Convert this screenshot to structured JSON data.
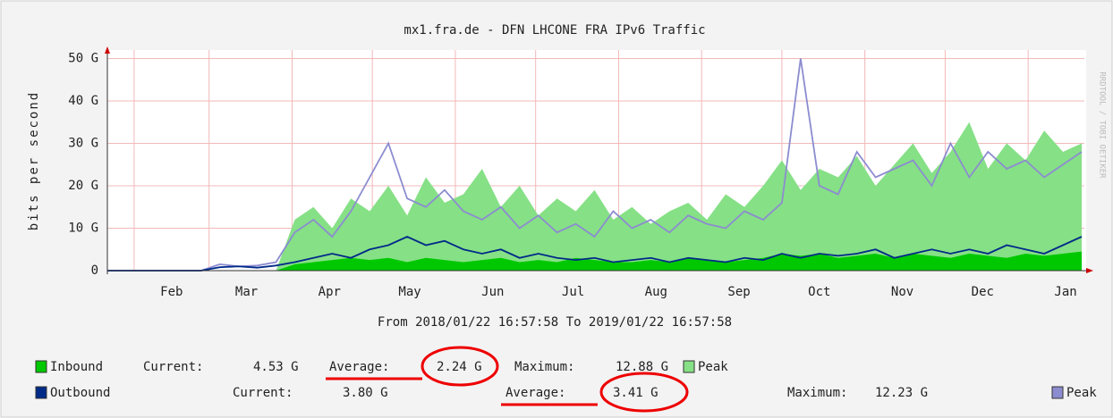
{
  "chart_data": {
    "type": "area",
    "title": "mx1.fra.de - DFN LHCONE FRA IPv6 Traffic",
    "subtitle": "From 2018/01/22 16:57:58 To 2019/01/22 16:57:58",
    "y_label": "bits per second",
    "watermark": "RRDTOOL / TOBI OETIKER",
    "grid": true,
    "xlim": [
      0,
      365
    ],
    "xticks": [
      {
        "value": 10,
        "label": "Feb"
      },
      {
        "value": 38,
        "label": "Mar"
      },
      {
        "value": 69,
        "label": "Apr"
      },
      {
        "value": 99,
        "label": "May"
      },
      {
        "value": 130,
        "label": "Jun"
      },
      {
        "value": 160,
        "label": "Jul"
      },
      {
        "value": 191,
        "label": "Aug"
      },
      {
        "value": 222,
        "label": "Sep"
      },
      {
        "value": 252,
        "label": "Oct"
      },
      {
        "value": 283,
        "label": "Nov"
      },
      {
        "value": 313,
        "label": "Dec"
      },
      {
        "value": 344,
        "label": "Jan"
      }
    ],
    "ylim": [
      0,
      52
    ],
    "yticks": [
      {
        "value": 0,
        "label": "0"
      },
      {
        "value": 10,
        "label": "10 G"
      },
      {
        "value": 20,
        "label": "20 G"
      },
      {
        "value": 30,
        "label": "30 G"
      },
      {
        "value": 40,
        "label": "40 G"
      },
      {
        "value": 50,
        "label": "50 G"
      }
    ],
    "x": [
      0,
      7,
      14,
      21,
      28,
      35,
      42,
      49,
      56,
      63,
      70,
      77,
      84,
      91,
      98,
      105,
      112,
      119,
      126,
      133,
      140,
      147,
      154,
      161,
      168,
      175,
      182,
      189,
      196,
      203,
      210,
      217,
      224,
      231,
      238,
      245,
      252,
      259,
      266,
      273,
      280,
      287,
      294,
      301,
      308,
      315,
      322,
      329,
      336,
      343,
      350,
      357,
      364
    ],
    "series": [
      {
        "name": "Peak",
        "color": "#86e086",
        "draw": "area",
        "values": [
          0,
          0,
          0,
          0,
          0,
          0,
          0,
          0,
          0,
          0,
          12,
          15,
          10,
          17,
          14,
          20,
          13,
          22,
          16,
          18,
          24,
          15,
          20,
          13,
          17,
          14,
          19,
          12,
          15,
          11,
          14,
          16,
          12,
          18,
          15,
          20,
          26,
          19,
          24,
          22,
          27,
          20,
          25,
          30,
          23,
          28,
          35,
          24,
          30,
          26,
          33,
          28,
          30
        ]
      },
      {
        "name": "Inbound",
        "color": "#00c800",
        "draw": "area",
        "stats": [
          "Current:",
          "4.53 G",
          "Average:",
          "2.24 G",
          "Maximum:",
          "12.88 G"
        ],
        "values": [
          0,
          0,
          0,
          0,
          0,
          0,
          0,
          0,
          0,
          0,
          1.5,
          2,
          2.5,
          3,
          2.5,
          3,
          2,
          3,
          2.5,
          2,
          2.5,
          3,
          2,
          2.5,
          2,
          3,
          2.5,
          2,
          2,
          2.5,
          2,
          3,
          2.5,
          2,
          2.5,
          3,
          4,
          3.5,
          4,
          3,
          3.5,
          4,
          3,
          4,
          3.5,
          3,
          4,
          3.5,
          3,
          4,
          3.5,
          4,
          4.5
        ]
      },
      {
        "name": "Peak",
        "color": "#8c8cd0",
        "draw": "line",
        "values": [
          0,
          0,
          0,
          0,
          0,
          0,
          1.5,
          1,
          1.2,
          2,
          9,
          12,
          8,
          14,
          22,
          30,
          17,
          15,
          19,
          14,
          12,
          15,
          10,
          13,
          9,
          11,
          8,
          14,
          10,
          12,
          9,
          13,
          11,
          10,
          14,
          12,
          16,
          50,
          20,
          18,
          28,
          22,
          24,
          26,
          20,
          30,
          22,
          28,
          24,
          26,
          22,
          25,
          28
        ]
      },
      {
        "name": "Outbound",
        "color": "#002a88",
        "draw": "line",
        "stats": [
          "Current:",
          "3.80 G",
          "Average:",
          "3.41 G",
          "Maximum:",
          "12.23 G"
        ],
        "values": [
          0,
          0,
          0,
          0,
          0,
          0,
          0.8,
          1,
          0.7,
          1.2,
          2,
          3,
          4,
          3,
          5,
          6,
          8,
          6,
          7,
          5,
          4,
          5,
          3,
          4,
          3,
          2.5,
          3,
          2,
          2.5,
          3,
          2,
          3,
          2.5,
          2,
          3,
          2.5,
          4,
          3,
          4,
          3.5,
          4,
          5,
          3,
          4,
          5,
          4,
          5,
          4,
          6,
          5,
          4,
          6,
          8
        ]
      }
    ]
  }
}
